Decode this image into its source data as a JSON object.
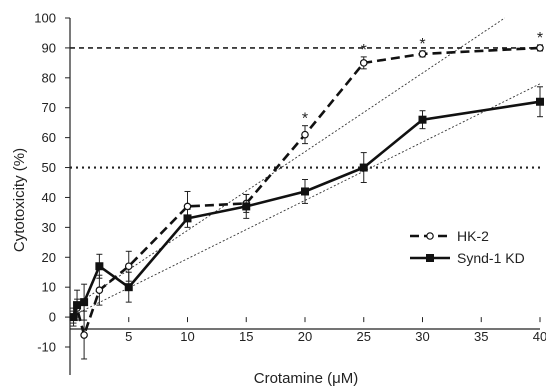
{
  "chart_data": {
    "type": "line",
    "title": "",
    "xlabel": "Crotamine (μM)",
    "ylabel": "Cytotoxicity (%)",
    "xlim": [
      0,
      40
    ],
    "ylim": [
      -10,
      100
    ],
    "x_ticks": [
      5,
      10,
      15,
      20,
      25,
      30,
      35,
      40
    ],
    "y_ticks": [
      -10,
      0,
      10,
      20,
      30,
      40,
      50,
      60,
      70,
      80,
      90,
      100
    ],
    "grid": false,
    "legend_position": "right",
    "reference_lines": [
      {
        "y": 90,
        "style": "dashed"
      },
      {
        "y": 50,
        "style": "dotted"
      }
    ],
    "significance_marker": "*",
    "series": [
      {
        "name": "HK-2",
        "marker": "open-circle",
        "line_style": "dashed",
        "x": [
          0.3,
          0.6,
          1.2,
          2.5,
          5,
          10,
          15,
          20,
          25,
          30,
          40
        ],
        "y": [
          0,
          3,
          -6,
          9,
          17,
          37,
          38,
          61,
          85,
          88,
          90
        ],
        "err": [
          2,
          3,
          8,
          5,
          5,
          5,
          3,
          3,
          2,
          1,
          1
        ],
        "significant": [
          false,
          false,
          false,
          false,
          false,
          false,
          false,
          true,
          true,
          true,
          true
        ]
      },
      {
        "name": "Synd-1 KD",
        "marker": "filled-square",
        "line_style": "solid",
        "x": [
          0.3,
          0.6,
          1.2,
          2.5,
          5,
          10,
          15,
          20,
          25,
          30,
          40
        ],
        "y": [
          0,
          4,
          5,
          17,
          10,
          33,
          37,
          42,
          50,
          66,
          72
        ],
        "err": [
          3,
          5,
          6,
          4,
          5,
          3,
          4,
          4,
          5,
          3,
          5
        ],
        "significant": [
          false,
          false,
          false,
          false,
          false,
          false,
          false,
          false,
          false,
          false,
          false
        ]
      }
    ],
    "trendlines": [
      {
        "series": "HK-2",
        "style": "dotted-thin",
        "x": [
          0.5,
          37
        ],
        "y": [
          4,
          100
        ]
      },
      {
        "series": "Synd-1 KD",
        "style": "dotted-thin",
        "x": [
          0.5,
          40
        ],
        "y": [
          1,
          78
        ]
      }
    ]
  }
}
